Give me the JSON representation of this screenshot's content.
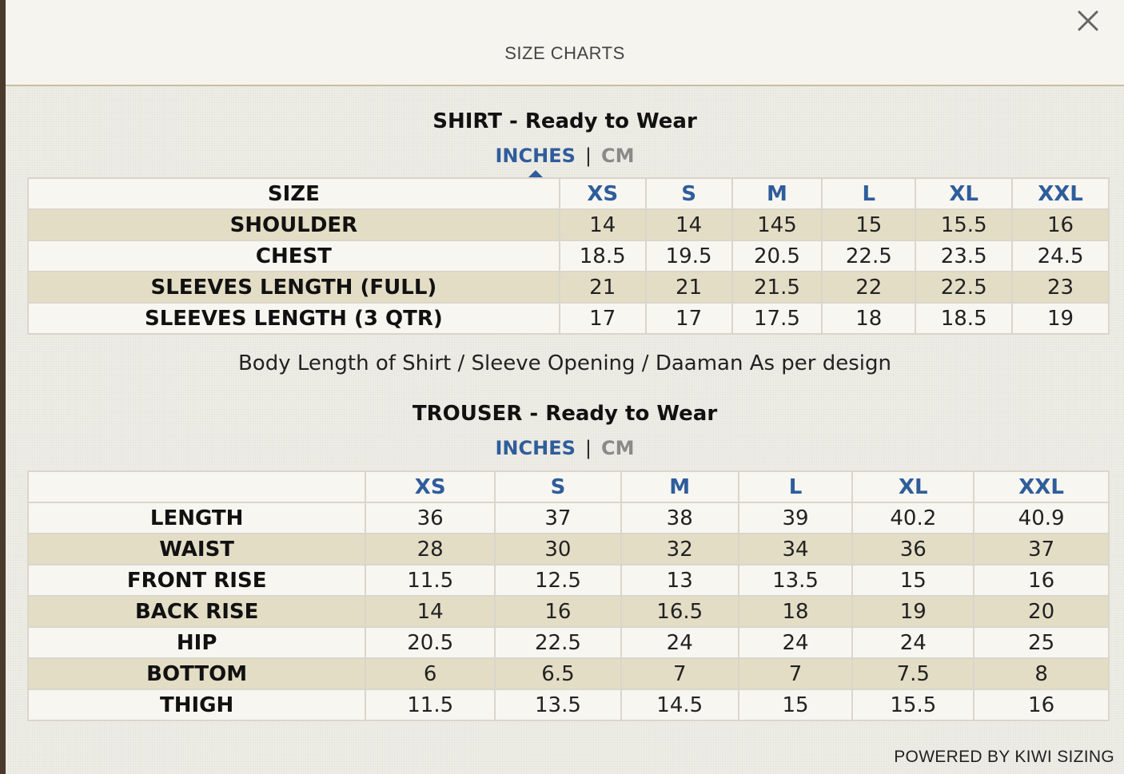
{
  "header": {
    "title": "SIZE CHARTS",
    "close_icon": "close-icon"
  },
  "shirt": {
    "title": "SHIRT - Ready to Wear",
    "unit_active": "INCHES",
    "unit_separator": "|",
    "unit_inactive": "CM",
    "header_label": "SIZE",
    "sizes": [
      "XS",
      "S",
      "M",
      "L",
      "XL",
      "XXL"
    ],
    "rows": [
      {
        "label": "SHOULDER",
        "values": [
          "14",
          "14",
          "145",
          "15",
          "15.5",
          "16"
        ]
      },
      {
        "label": "CHEST",
        "values": [
          "18.5",
          "19.5",
          "20.5",
          "22.5",
          "23.5",
          "24.5"
        ]
      },
      {
        "label": "SLEEVES LENGTH (FULL)",
        "values": [
          "21",
          "21",
          "21.5",
          "22",
          "22.5",
          "23"
        ]
      },
      {
        "label": "SLEEVES LENGTH (3 QTR)",
        "values": [
          "17",
          "17",
          "17.5",
          "18",
          "18.5",
          "19"
        ]
      }
    ],
    "note": "Body Length of Shirt / Sleeve Opening / Daaman As per design"
  },
  "trouser": {
    "title": "TROUSER - Ready to Wear",
    "unit_active": "INCHES",
    "unit_separator": "|",
    "unit_inactive": "CM",
    "header_label": "",
    "sizes": [
      "XS",
      "S",
      "M",
      "L",
      "XL",
      "XXL"
    ],
    "rows": [
      {
        "label": "LENGTH",
        "values": [
          "36",
          "37",
          "38",
          "39",
          "40.2",
          "40.9"
        ]
      },
      {
        "label": "WAIST",
        "values": [
          "28",
          "30",
          "32",
          "34",
          "36",
          "37"
        ]
      },
      {
        "label": "FRONT RISE",
        "values": [
          "11.5",
          "12.5",
          "13",
          "13.5",
          "15",
          "16"
        ]
      },
      {
        "label": "BACK RISE",
        "values": [
          "14",
          "16",
          "16.5",
          "18",
          "19",
          "20"
        ]
      },
      {
        "label": "HIP",
        "values": [
          "20.5",
          "22.5",
          "24",
          "24",
          "24",
          "25"
        ]
      },
      {
        "label": "BOTTOM",
        "values": [
          "6",
          "6.5",
          "7",
          "7",
          "7.5",
          "8"
        ]
      },
      {
        "label": "THIGH",
        "values": [
          "11.5",
          "13.5",
          "14.5",
          "15",
          "15.5",
          "16"
        ]
      }
    ]
  },
  "footer": {
    "powered_by": "POWERED BY KIWI SIZING"
  },
  "colors": {
    "accent": "#2f5d9b",
    "row_shade": "#e4ddc6",
    "background": "#eeede6"
  }
}
